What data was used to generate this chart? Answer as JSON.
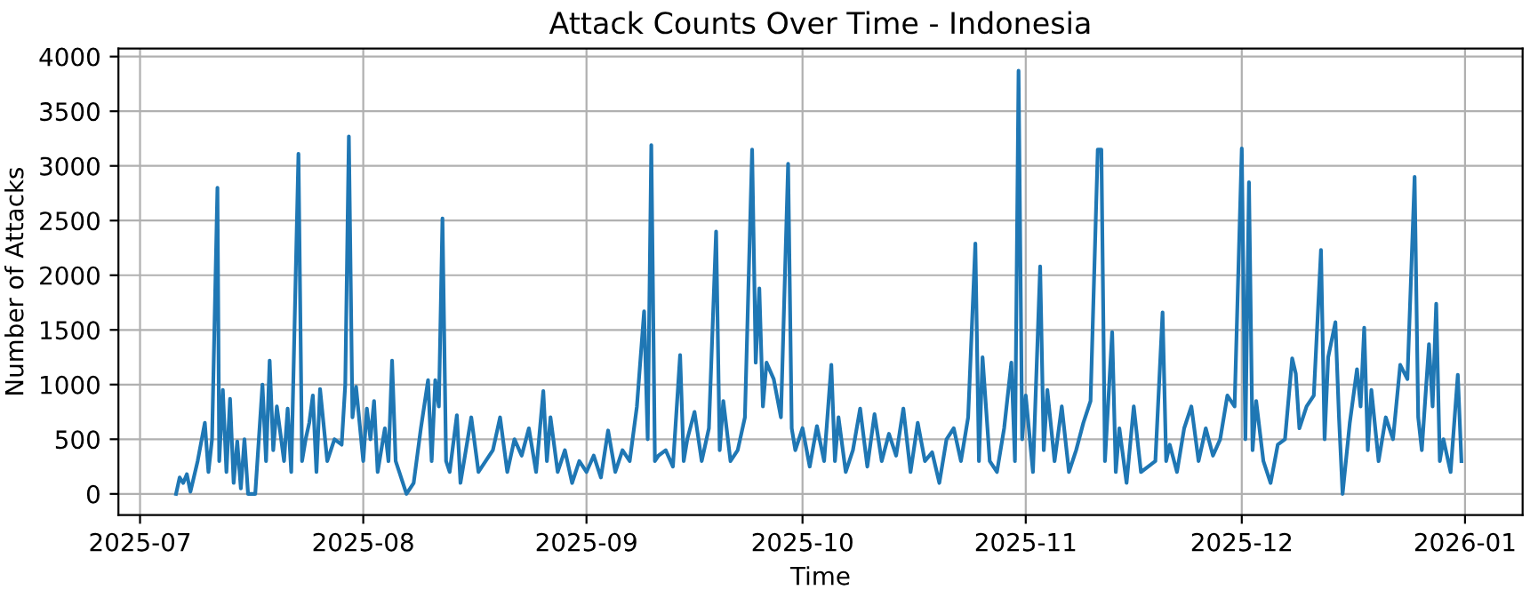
{
  "chart_data": {
    "type": "line",
    "title": "Attack Counts Over Time - Indonesia",
    "xlabel": "Time",
    "ylabel": "Number of Attacks",
    "xlim": [
      "2025-06-28",
      "2026-01-09"
    ],
    "xticks": [
      {
        "value": "2025-07-01",
        "label": "2025-07"
      },
      {
        "value": "2025-08-01",
        "label": "2025-08"
      },
      {
        "value": "2025-09-01",
        "label": "2025-09"
      },
      {
        "value": "2025-10-01",
        "label": "2025-10"
      },
      {
        "value": "2025-11-01",
        "label": "2025-11"
      },
      {
        "value": "2025-12-01",
        "label": "2025-12"
      },
      {
        "value": "2026-01-01",
        "label": "2026-01"
      }
    ],
    "ylim": [
      -194,
      4074
    ],
    "yticks": [
      0,
      500,
      1000,
      1500,
      2000,
      2500,
      3000,
      3500,
      4000
    ],
    "grid": true,
    "line_style": "solid",
    "series": [
      {
        "color": "#1f77b4",
        "x": [
          "2025-07-06T00:00",
          "2025-07-06T12:00",
          "2025-07-07",
          "2025-07-07T12:00",
          "2025-07-08",
          "2025-07-09",
          "2025-07-10",
          "2025-07-10T12:00",
          "2025-07-11",
          "2025-07-11T18:00",
          "2025-07-12",
          "2025-07-12T12:00",
          "2025-07-13",
          "2025-07-13T12:00",
          "2025-07-14",
          "2025-07-14T12:00",
          "2025-07-15",
          "2025-07-15T12:00",
          "2025-07-16",
          "2025-07-17",
          "2025-07-18",
          "2025-07-18T12:00",
          "2025-07-19",
          "2025-07-19T12:00",
          "2025-07-20",
          "2025-07-21",
          "2025-07-21T12:00",
          "2025-07-22",
          "2025-07-23",
          "2025-07-23T12:00",
          "2025-07-24",
          "2025-07-24T12:00",
          "2025-07-25",
          "2025-07-25T12:00",
          "2025-07-26",
          "2025-07-27",
          "2025-07-28",
          "2025-07-29",
          "2025-07-29T12:00",
          "2025-07-30",
          "2025-07-30T12:00",
          "2025-07-31",
          "2025-08-01",
          "2025-08-01T12:00",
          "2025-08-02",
          "2025-08-02T12:00",
          "2025-08-03",
          "2025-08-04",
          "2025-08-04T12:00",
          "2025-08-05",
          "2025-08-05T12:00",
          "2025-08-06",
          "2025-08-07",
          "2025-08-08",
          "2025-08-09",
          "2025-08-10",
          "2025-08-10T12:00",
          "2025-08-11",
          "2025-08-11T12:00",
          "2025-08-12",
          "2025-08-12T12:00",
          "2025-08-13",
          "2025-08-14",
          "2025-08-14T12:00",
          "2025-08-15",
          "2025-08-16",
          "2025-08-17",
          "2025-08-18",
          "2025-08-19",
          "2025-08-20",
          "2025-08-21",
          "2025-08-22",
          "2025-08-23",
          "2025-08-24",
          "2025-08-25",
          "2025-08-26",
          "2025-08-26T12:00",
          "2025-08-27",
          "2025-08-28",
          "2025-08-29",
          "2025-08-30",
          "2025-08-31",
          "2025-09-01",
          "2025-09-02",
          "2025-09-03",
          "2025-09-04",
          "2025-09-05",
          "2025-09-06",
          "2025-09-07",
          "2025-09-08",
          "2025-09-09",
          "2025-09-09T12:00",
          "2025-09-10",
          "2025-09-10T12:00",
          "2025-09-11",
          "2025-09-12",
          "2025-09-13",
          "2025-09-14",
          "2025-09-14T12:00",
          "2025-09-15",
          "2025-09-16",
          "2025-09-17",
          "2025-09-18",
          "2025-09-19",
          "2025-09-19T12:00",
          "2025-09-20",
          "2025-09-21",
          "2025-09-22",
          "2025-09-23",
          "2025-09-24",
          "2025-09-24T12:00",
          "2025-09-25",
          "2025-09-25T12:00",
          "2025-09-26",
          "2025-09-27",
          "2025-09-28",
          "2025-09-29",
          "2025-09-29T12:00",
          "2025-09-30",
          "2025-10-01",
          "2025-10-02",
          "2025-10-03",
          "2025-10-04",
          "2025-10-05",
          "2025-10-05T12:00",
          "2025-10-06",
          "2025-10-07",
          "2025-10-08",
          "2025-10-09",
          "2025-10-10",
          "2025-10-11",
          "2025-10-12",
          "2025-10-13",
          "2025-10-14",
          "2025-10-15",
          "2025-10-16",
          "2025-10-17",
          "2025-10-18",
          "2025-10-19",
          "2025-10-20",
          "2025-10-21",
          "2025-10-22",
          "2025-10-23",
          "2025-10-24",
          "2025-10-25",
          "2025-10-25T12:00",
          "2025-10-26",
          "2025-10-27",
          "2025-10-28",
          "2025-10-29",
          "2025-10-30",
          "2025-10-30T12:00",
          "2025-10-31",
          "2025-10-31T12:00",
          "2025-11-01",
          "2025-11-02",
          "2025-11-03",
          "2025-11-03T12:00",
          "2025-11-04",
          "2025-11-05",
          "2025-11-06",
          "2025-11-07",
          "2025-11-08",
          "2025-11-09",
          "2025-11-10",
          "2025-11-11",
          "2025-11-11T12:00",
          "2025-11-12",
          "2025-11-13",
          "2025-11-13T12:00",
          "2025-11-14",
          "2025-11-15",
          "2025-11-16",
          "2025-11-17",
          "2025-11-18",
          "2025-11-19",
          "2025-11-20",
          "2025-11-20T12:00",
          "2025-11-21",
          "2025-11-22",
          "2025-11-23",
          "2025-11-24",
          "2025-11-25",
          "2025-11-26",
          "2025-11-27",
          "2025-11-28",
          "2025-11-29",
          "2025-11-30",
          "2025-12-01",
          "2025-12-01T12:00",
          "2025-12-02",
          "2025-12-02T12:00",
          "2025-12-03",
          "2025-12-04",
          "2025-12-05",
          "2025-12-06",
          "2025-12-07",
          "2025-12-08",
          "2025-12-08T12:00",
          "2025-12-09",
          "2025-12-10",
          "2025-12-11",
          "2025-12-12",
          "2025-12-12T12:00",
          "2025-12-13",
          "2025-12-14",
          "2025-12-14T12:00",
          "2025-12-15",
          "2025-12-16",
          "2025-12-17",
          "2025-12-17T12:00",
          "2025-12-18",
          "2025-12-18T12:00",
          "2025-12-19",
          "2025-12-20",
          "2025-12-21",
          "2025-12-22",
          "2025-12-23",
          "2025-12-24",
          "2025-12-25",
          "2025-12-25T12:00",
          "2025-12-26",
          "2025-12-27",
          "2025-12-27T12:00",
          "2025-12-28",
          "2025-12-28T12:00",
          "2025-12-29",
          "2025-12-30",
          "2025-12-31",
          "2025-12-31T12:00"
        ],
        "values": [
          0,
          150,
          100,
          180,
          20,
          300,
          650,
          200,
          500,
          2800,
          300,
          950,
          200,
          870,
          100,
          480,
          50,
          500,
          0,
          0,
          1000,
          300,
          1220,
          400,
          800,
          300,
          780,
          200,
          3110,
          300,
          500,
          650,
          900,
          200,
          960,
          300,
          500,
          450,
          1000,
          3270,
          700,
          980,
          300,
          780,
          500,
          850,
          200,
          600,
          300,
          1220,
          300,
          200,
          0,
          100,
          600,
          1040,
          300,
          1040,
          800,
          2520,
          300,
          200,
          720,
          100,
          300,
          700,
          200,
          300,
          400,
          700,
          200,
          500,
          350,
          600,
          200,
          940,
          300,
          700,
          200,
          400,
          100,
          300,
          200,
          350,
          150,
          580,
          200,
          400,
          300,
          800,
          1670,
          500,
          3190,
          300,
          350,
          400,
          250,
          1270,
          300,
          500,
          750,
          300,
          600,
          2400,
          400,
          850,
          300,
          400,
          700,
          3150,
          1200,
          1880,
          800,
          1200,
          1050,
          700,
          3020,
          600,
          400,
          600,
          250,
          620,
          300,
          1180,
          300,
          700,
          200,
          400,
          780,
          250,
          730,
          300,
          550,
          350,
          780,
          200,
          650,
          300,
          380,
          100,
          500,
          600,
          300,
          700,
          2290,
          300,
          1250,
          300,
          200,
          600,
          1200,
          300,
          3870,
          500,
          900,
          200,
          2080,
          400,
          950,
          300,
          800,
          200,
          400,
          650,
          850,
          3150,
          3150,
          300,
          1480,
          200,
          600,
          100,
          800,
          200,
          250,
          300,
          1660,
          300,
          450,
          200,
          600,
          800,
          300,
          600,
          350,
          500,
          900,
          800,
          3160,
          500,
          2850,
          400,
          850,
          300,
          100,
          450,
          500,
          1240,
          1100,
          600,
          800,
          900,
          2230,
          500,
          1250,
          1570,
          700,
          0,
          650,
          1140,
          800,
          1520,
          400,
          950,
          300,
          700,
          500,
          1180,
          1050,
          2900,
          700,
          400,
          1370,
          800,
          1740,
          300,
          500,
          200,
          1090,
          300
        ]
      }
    ]
  }
}
